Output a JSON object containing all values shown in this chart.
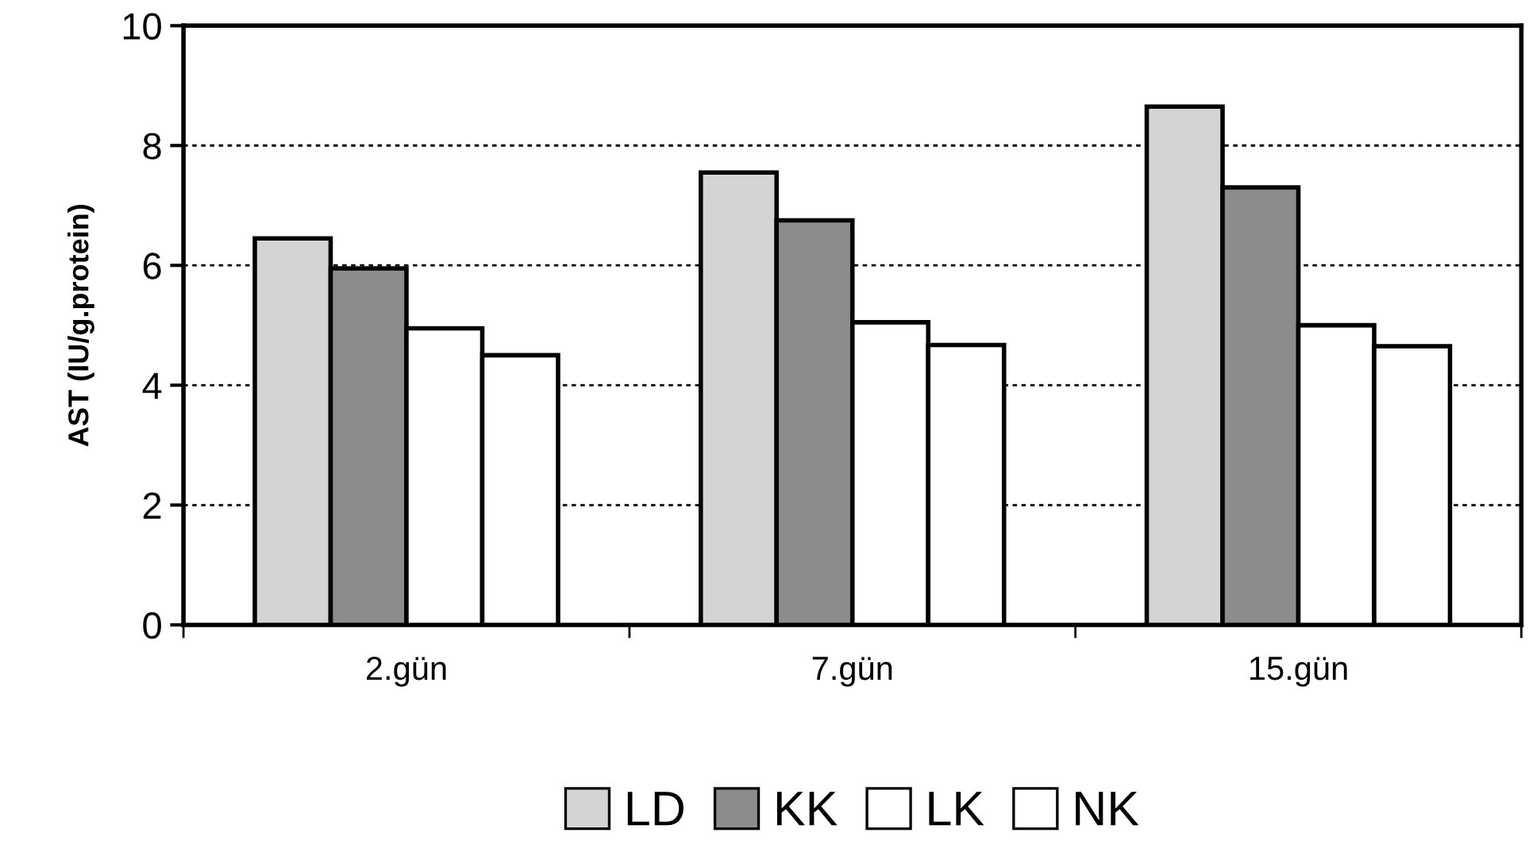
{
  "chart_data": {
    "type": "bar",
    "ylabel": "AST (IU/g.protein)",
    "categories": [
      "2.gün",
      "7.gün",
      "15.gün"
    ],
    "series": [
      {
        "name": "LD",
        "color": "#d4d4d4",
        "values": [
          6.45,
          7.55,
          8.65
        ]
      },
      {
        "name": "KK",
        "color": "#8c8c8c",
        "values": [
          5.95,
          6.75,
          7.3
        ]
      },
      {
        "name": "LK",
        "color": "#ffffff",
        "values": [
          4.95,
          5.05,
          5.0
        ]
      },
      {
        "name": "NK",
        "color": "#ffffff",
        "values": [
          4.5,
          4.67,
          4.65
        ]
      }
    ],
    "ylim": [
      0,
      10
    ],
    "yticks": [
      0,
      2,
      4,
      6,
      8,
      10
    ],
    "grid": "y",
    "legend": "bottom"
  }
}
